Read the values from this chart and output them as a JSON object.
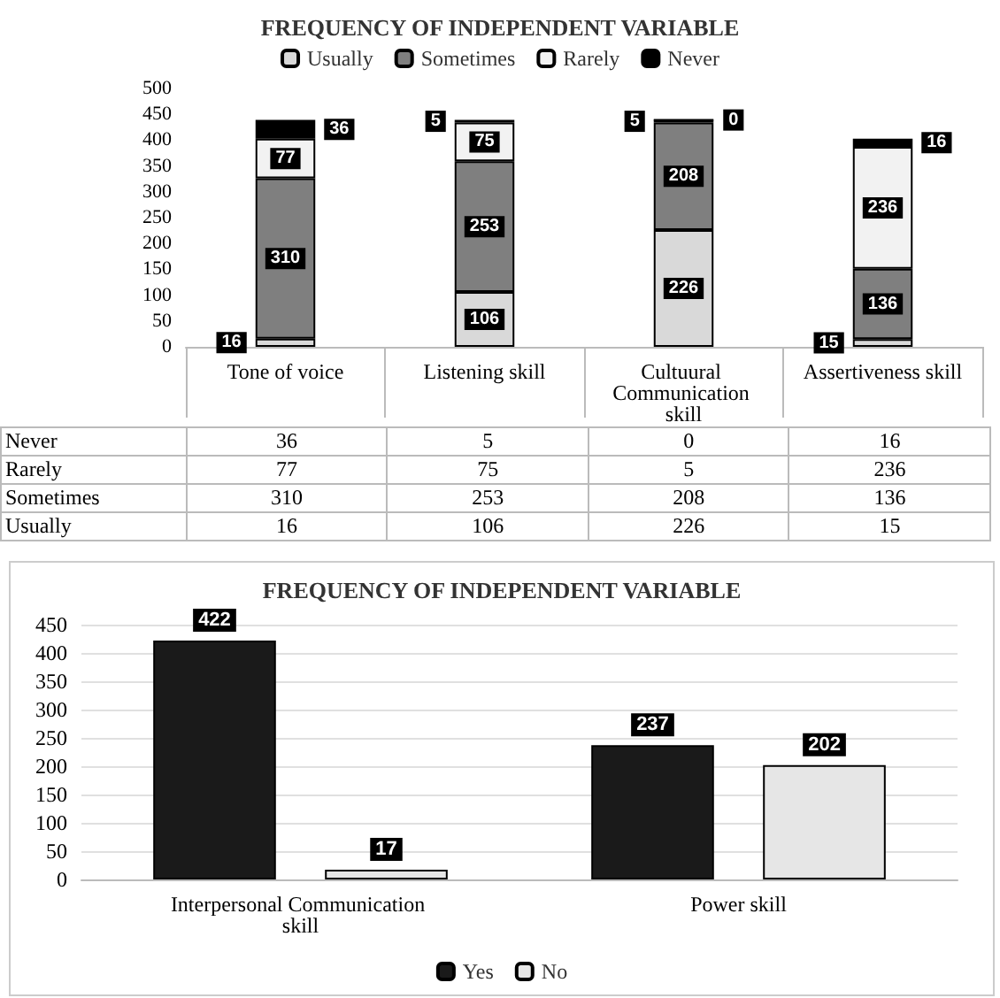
{
  "chart_data": [
    {
      "type": "bar",
      "title": "FREQUENCY OF INDEPENDENT VARIABLE",
      "categories": [
        "Tone of voice",
        "Listening skill",
        "Cultuural Communication skill",
        "Assertiveness skill"
      ],
      "stacked": true,
      "data_labels": true,
      "legend": "top",
      "grid": false,
      "ylim": [
        0,
        500
      ],
      "yticks": [
        0,
        50,
        100,
        150,
        200,
        250,
        300,
        350,
        400,
        450,
        500
      ],
      "series": [
        {
          "name": "Usually",
          "color": "#d9d9d9",
          "values": [
            16,
            106,
            226,
            15
          ],
          "value_labels": [
            "16",
            "106",
            "226",
            "15"
          ]
        },
        {
          "name": "Sometimes",
          "color": "#7f7f7f",
          "values": [
            310,
            253,
            208,
            136
          ],
          "value_labels": [
            "310",
            "253",
            "208",
            "136"
          ]
        },
        {
          "name": "Rarely",
          "color": "#f2f2f2",
          "values": [
            77,
            75,
            5,
            236
          ],
          "value_labels": [
            "77",
            "75",
            "5",
            "236"
          ]
        },
        {
          "name": "Never",
          "color": "#000000",
          "values": [
            36,
            5,
            0,
            16
          ],
          "value_labels": [
            "36",
            "5",
            "0",
            "16"
          ]
        }
      ]
    },
    {
      "type": "bar",
      "title": "FREQUENCY OF INDEPENDENT VARIABLE",
      "categories": [
        "Interpersonal Communication skill",
        "Power skill"
      ],
      "data_labels": true,
      "legend": "bottom",
      "grid": "y",
      "ylim": [
        0,
        450
      ],
      "yticks": [
        0,
        50,
        100,
        150,
        200,
        250,
        300,
        350,
        400,
        450
      ],
      "series": [
        {
          "name": "Yes",
          "color": "#1a1a1a",
          "values": [
            422,
            237
          ]
        },
        {
          "name": "No",
          "color": "#e6e6e6",
          "values": [
            17,
            202
          ]
        }
      ]
    }
  ]
}
